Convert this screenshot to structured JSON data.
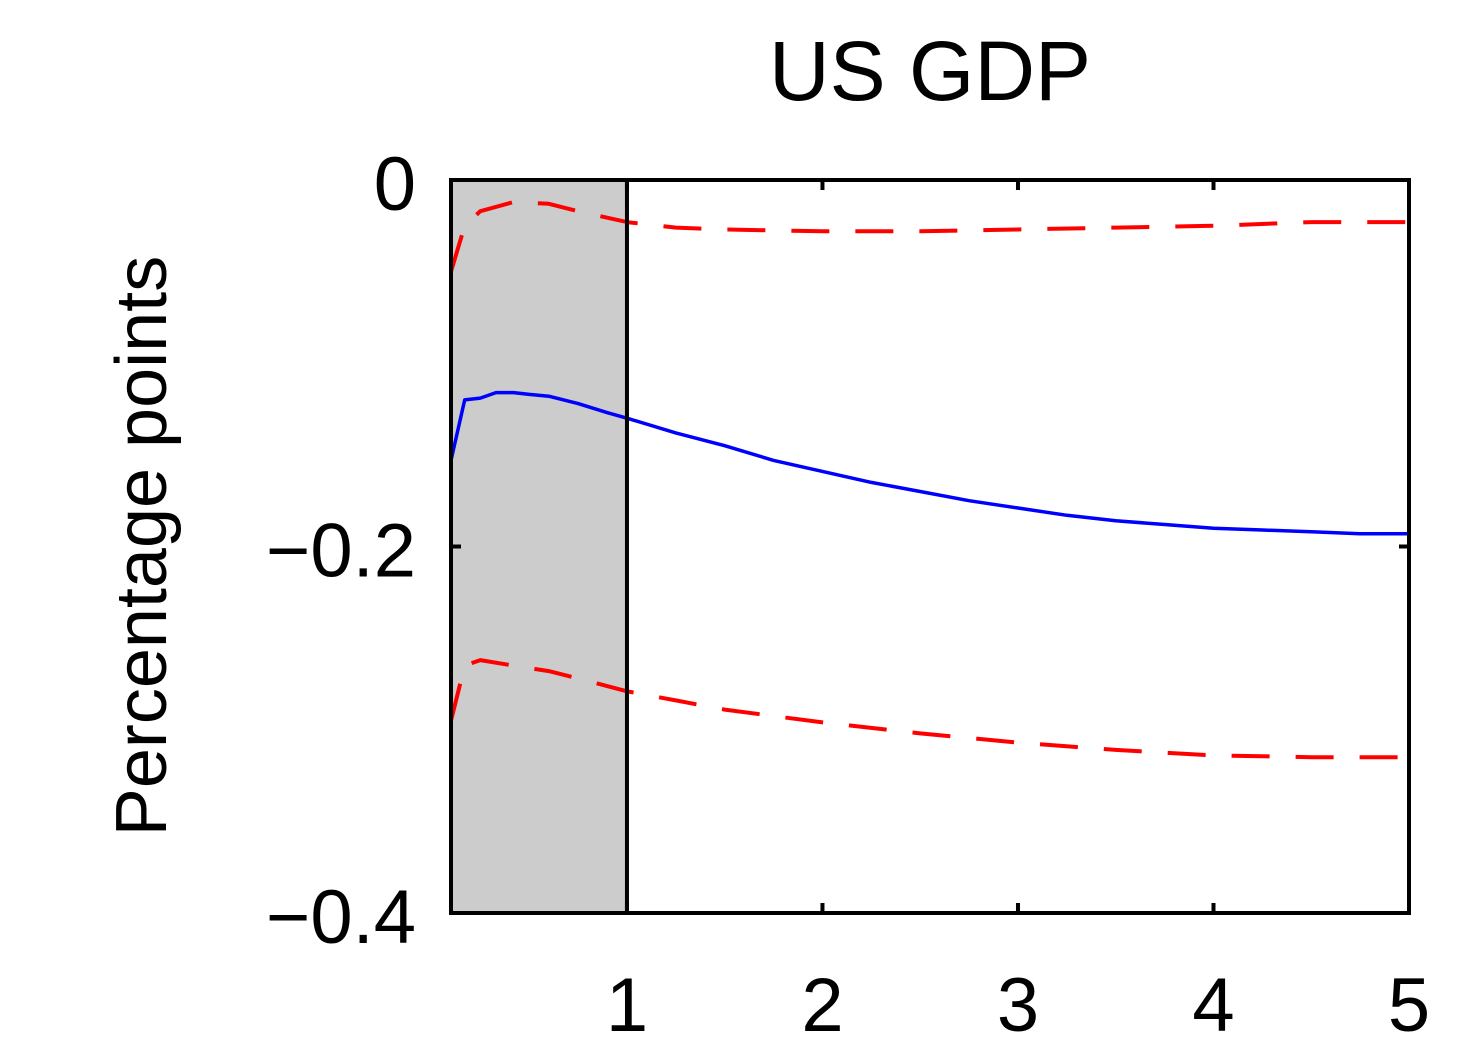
{
  "chart_data": {
    "type": "line",
    "title": "US GDP",
    "xlabel": "",
    "ylabel": "Percentage points",
    "xlim": [
      0.1,
      5
    ],
    "ylim": [
      -0.4,
      0
    ],
    "xticks": [
      1,
      2,
      3,
      4,
      5
    ],
    "xtick_labels": [
      "1",
      "2",
      "3",
      "4",
      "5"
    ],
    "yticks": [
      0,
      -0.2,
      -0.4
    ],
    "ytick_labels": [
      "0",
      "−0.2",
      "−0.4"
    ],
    "shaded_region": {
      "x": [
        0.1,
        1
      ],
      "color": "#cccccc"
    },
    "vertical_line_x": 1,
    "grid": false,
    "series": [
      {
        "role": "estimate",
        "style": "solid",
        "color": "#0000ff",
        "x": [
          0.1,
          0.17,
          0.25,
          0.33,
          0.42,
          0.5,
          0.6,
          0.75,
          0.9,
          1.0,
          1.25,
          1.5,
          1.75,
          2.0,
          2.25,
          2.5,
          2.75,
          3.0,
          3.25,
          3.5,
          3.75,
          4.0,
          4.25,
          4.5,
          4.75,
          5.0
        ],
        "y": [
          -0.153,
          -0.12,
          -0.119,
          -0.116,
          -0.116,
          -0.117,
          -0.118,
          -0.122,
          -0.127,
          -0.13,
          -0.138,
          -0.145,
          -0.153,
          -0.159,
          -0.165,
          -0.17,
          -0.175,
          -0.179,
          -0.183,
          -0.186,
          -0.188,
          -0.19,
          -0.191,
          -0.192,
          -0.193,
          -0.193
        ]
      },
      {
        "role": "upper-band",
        "style": "dashed",
        "color": "#ff0000",
        "x": [
          0.1,
          0.17,
          0.25,
          0.42,
          0.6,
          0.75,
          1.0,
          1.25,
          1.5,
          2.0,
          2.5,
          3.0,
          3.5,
          4.0,
          4.5,
          5.0
        ],
        "y": [
          -0.05,
          -0.025,
          -0.017,
          -0.012,
          -0.013,
          -0.017,
          -0.023,
          -0.026,
          -0.027,
          -0.028,
          -0.028,
          -0.027,
          -0.026,
          -0.025,
          -0.023,
          -0.023
        ]
      },
      {
        "role": "lower-band",
        "style": "dashed",
        "color": "#ff0000",
        "x": [
          0.1,
          0.17,
          0.25,
          0.42,
          0.6,
          0.75,
          1.0,
          1.25,
          1.5,
          2.0,
          2.5,
          3.0,
          3.5,
          4.0,
          4.5,
          5.0
        ],
        "y": [
          -0.295,
          -0.265,
          -0.262,
          -0.265,
          -0.268,
          -0.272,
          -0.279,
          -0.284,
          -0.289,
          -0.296,
          -0.302,
          -0.307,
          -0.311,
          -0.314,
          -0.315,
          -0.315
        ]
      }
    ]
  }
}
